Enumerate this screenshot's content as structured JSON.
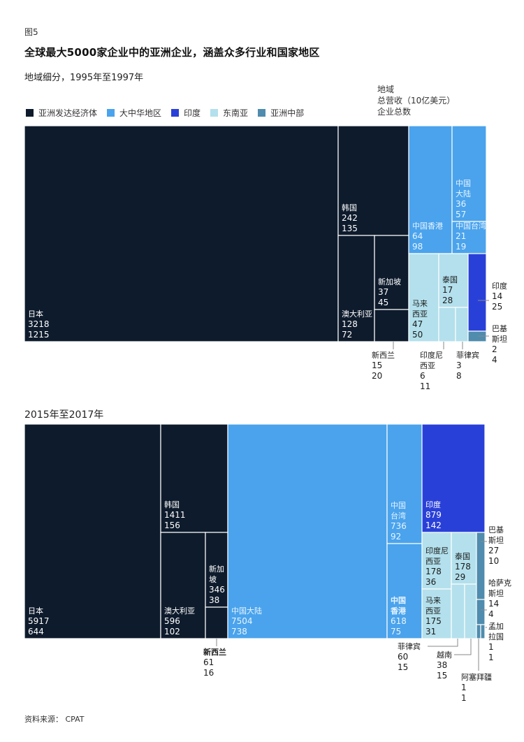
{
  "figure_label": "图5",
  "title": "全球最大5000家企业中的亚洲企业，涵盖众多行业和国家地区",
  "legend": [
    {
      "key": "developed",
      "label": "亚洲发达经济体",
      "color": "#0e1b2c"
    },
    {
      "key": "greater_china",
      "label": "大中华地区",
      "color": "#4aa3ec"
    },
    {
      "key": "india",
      "label": "印度",
      "color": "#2940d8"
    },
    {
      "key": "sea",
      "label": "东南亚",
      "color": "#b3e0ec"
    },
    {
      "key": "central",
      "label": "亚洲中部",
      "color": "#4f8cae"
    }
  ],
  "key_lines": [
    "地域",
    "总营收（10亿美元）",
    "企业总数"
  ],
  "source": "资料来源：  CPAT",
  "chart_data": [
    {
      "type": "treemap",
      "title": "地域细分，1995年至1997年",
      "value_label": "总营收（10亿美元）",
      "count_label": "企业总数",
      "items": [
        {
          "name": "日本",
          "region": "developed",
          "revenue": 3218,
          "companies": 1215
        },
        {
          "name": "韩国",
          "region": "developed",
          "revenue": 242,
          "companies": 135
        },
        {
          "name": "澳大利亚",
          "region": "developed",
          "revenue": 128,
          "companies": 72
        },
        {
          "name": "新加坡",
          "region": "developed",
          "revenue": 37,
          "companies": 45
        },
        {
          "name": "新西兰",
          "region": "developed",
          "revenue": 15,
          "companies": 20
        },
        {
          "name": "中国香港",
          "region": "greater_china",
          "revenue": 64,
          "companies": 98
        },
        {
          "name": "中国大陆",
          "region": "greater_china",
          "revenue": 36,
          "companies": 57
        },
        {
          "name": "中国台湾",
          "region": "greater_china",
          "revenue": 21,
          "companies": 19
        },
        {
          "name": "马来西亚",
          "region": "sea",
          "revenue": 47,
          "companies": 50
        },
        {
          "name": "泰国",
          "region": "sea",
          "revenue": 17,
          "companies": 28
        },
        {
          "name": "印度尼西亚",
          "region": "sea",
          "revenue": 6,
          "companies": 11
        },
        {
          "name": "菲律宾",
          "region": "sea",
          "revenue": 3,
          "companies": 8
        },
        {
          "name": "印度",
          "region": "india",
          "revenue": 14,
          "companies": 25
        },
        {
          "name": "巴基斯坦",
          "region": "central",
          "revenue": 2,
          "companies": 4
        }
      ]
    },
    {
      "type": "treemap",
      "title": "2015年至2017年",
      "value_label": "总营收（10亿美元）",
      "count_label": "企业总数",
      "items": [
        {
          "name": "日本",
          "region": "developed",
          "revenue": 5917,
          "companies": 644
        },
        {
          "name": "韩国",
          "region": "developed",
          "revenue": 1411,
          "companies": 156
        },
        {
          "name": "澳大利亚",
          "region": "developed",
          "revenue": 596,
          "companies": 102
        },
        {
          "name": "新加坡",
          "region": "developed",
          "revenue": 346,
          "companies": 38
        },
        {
          "name": "新西兰",
          "region": "developed",
          "revenue": 61,
          "companies": 16
        },
        {
          "name": "中国大陆",
          "region": "greater_china",
          "revenue": 7504,
          "companies": 738
        },
        {
          "name": "中国台湾",
          "region": "greater_china",
          "revenue": 736,
          "companies": 92
        },
        {
          "name": "中国香港",
          "region": "greater_china",
          "revenue": 618,
          "companies": 75
        },
        {
          "name": "印度",
          "region": "india",
          "revenue": 879,
          "companies": 142
        },
        {
          "name": "印度尼西亚",
          "region": "sea",
          "revenue": 178,
          "companies": 36
        },
        {
          "name": "马来西亚",
          "region": "sea",
          "revenue": 175,
          "companies": 31
        },
        {
          "name": "泰国",
          "region": "sea",
          "revenue": 178,
          "companies": 29
        },
        {
          "name": "菲律宾",
          "region": "sea",
          "revenue": 60,
          "companies": 15
        },
        {
          "name": "越南",
          "region": "sea",
          "revenue": 38,
          "companies": 15
        },
        {
          "name": "巴基斯坦",
          "region": "central",
          "revenue": 27,
          "companies": 10
        },
        {
          "name": "哈萨克斯坦",
          "region": "central",
          "revenue": 14,
          "companies": 4
        },
        {
          "name": "孟加拉国",
          "region": "central",
          "revenue": 1,
          "companies": 1
        },
        {
          "name": "阿塞拜疆",
          "region": "central",
          "revenue": 1,
          "companies": 1
        }
      ]
    }
  ]
}
